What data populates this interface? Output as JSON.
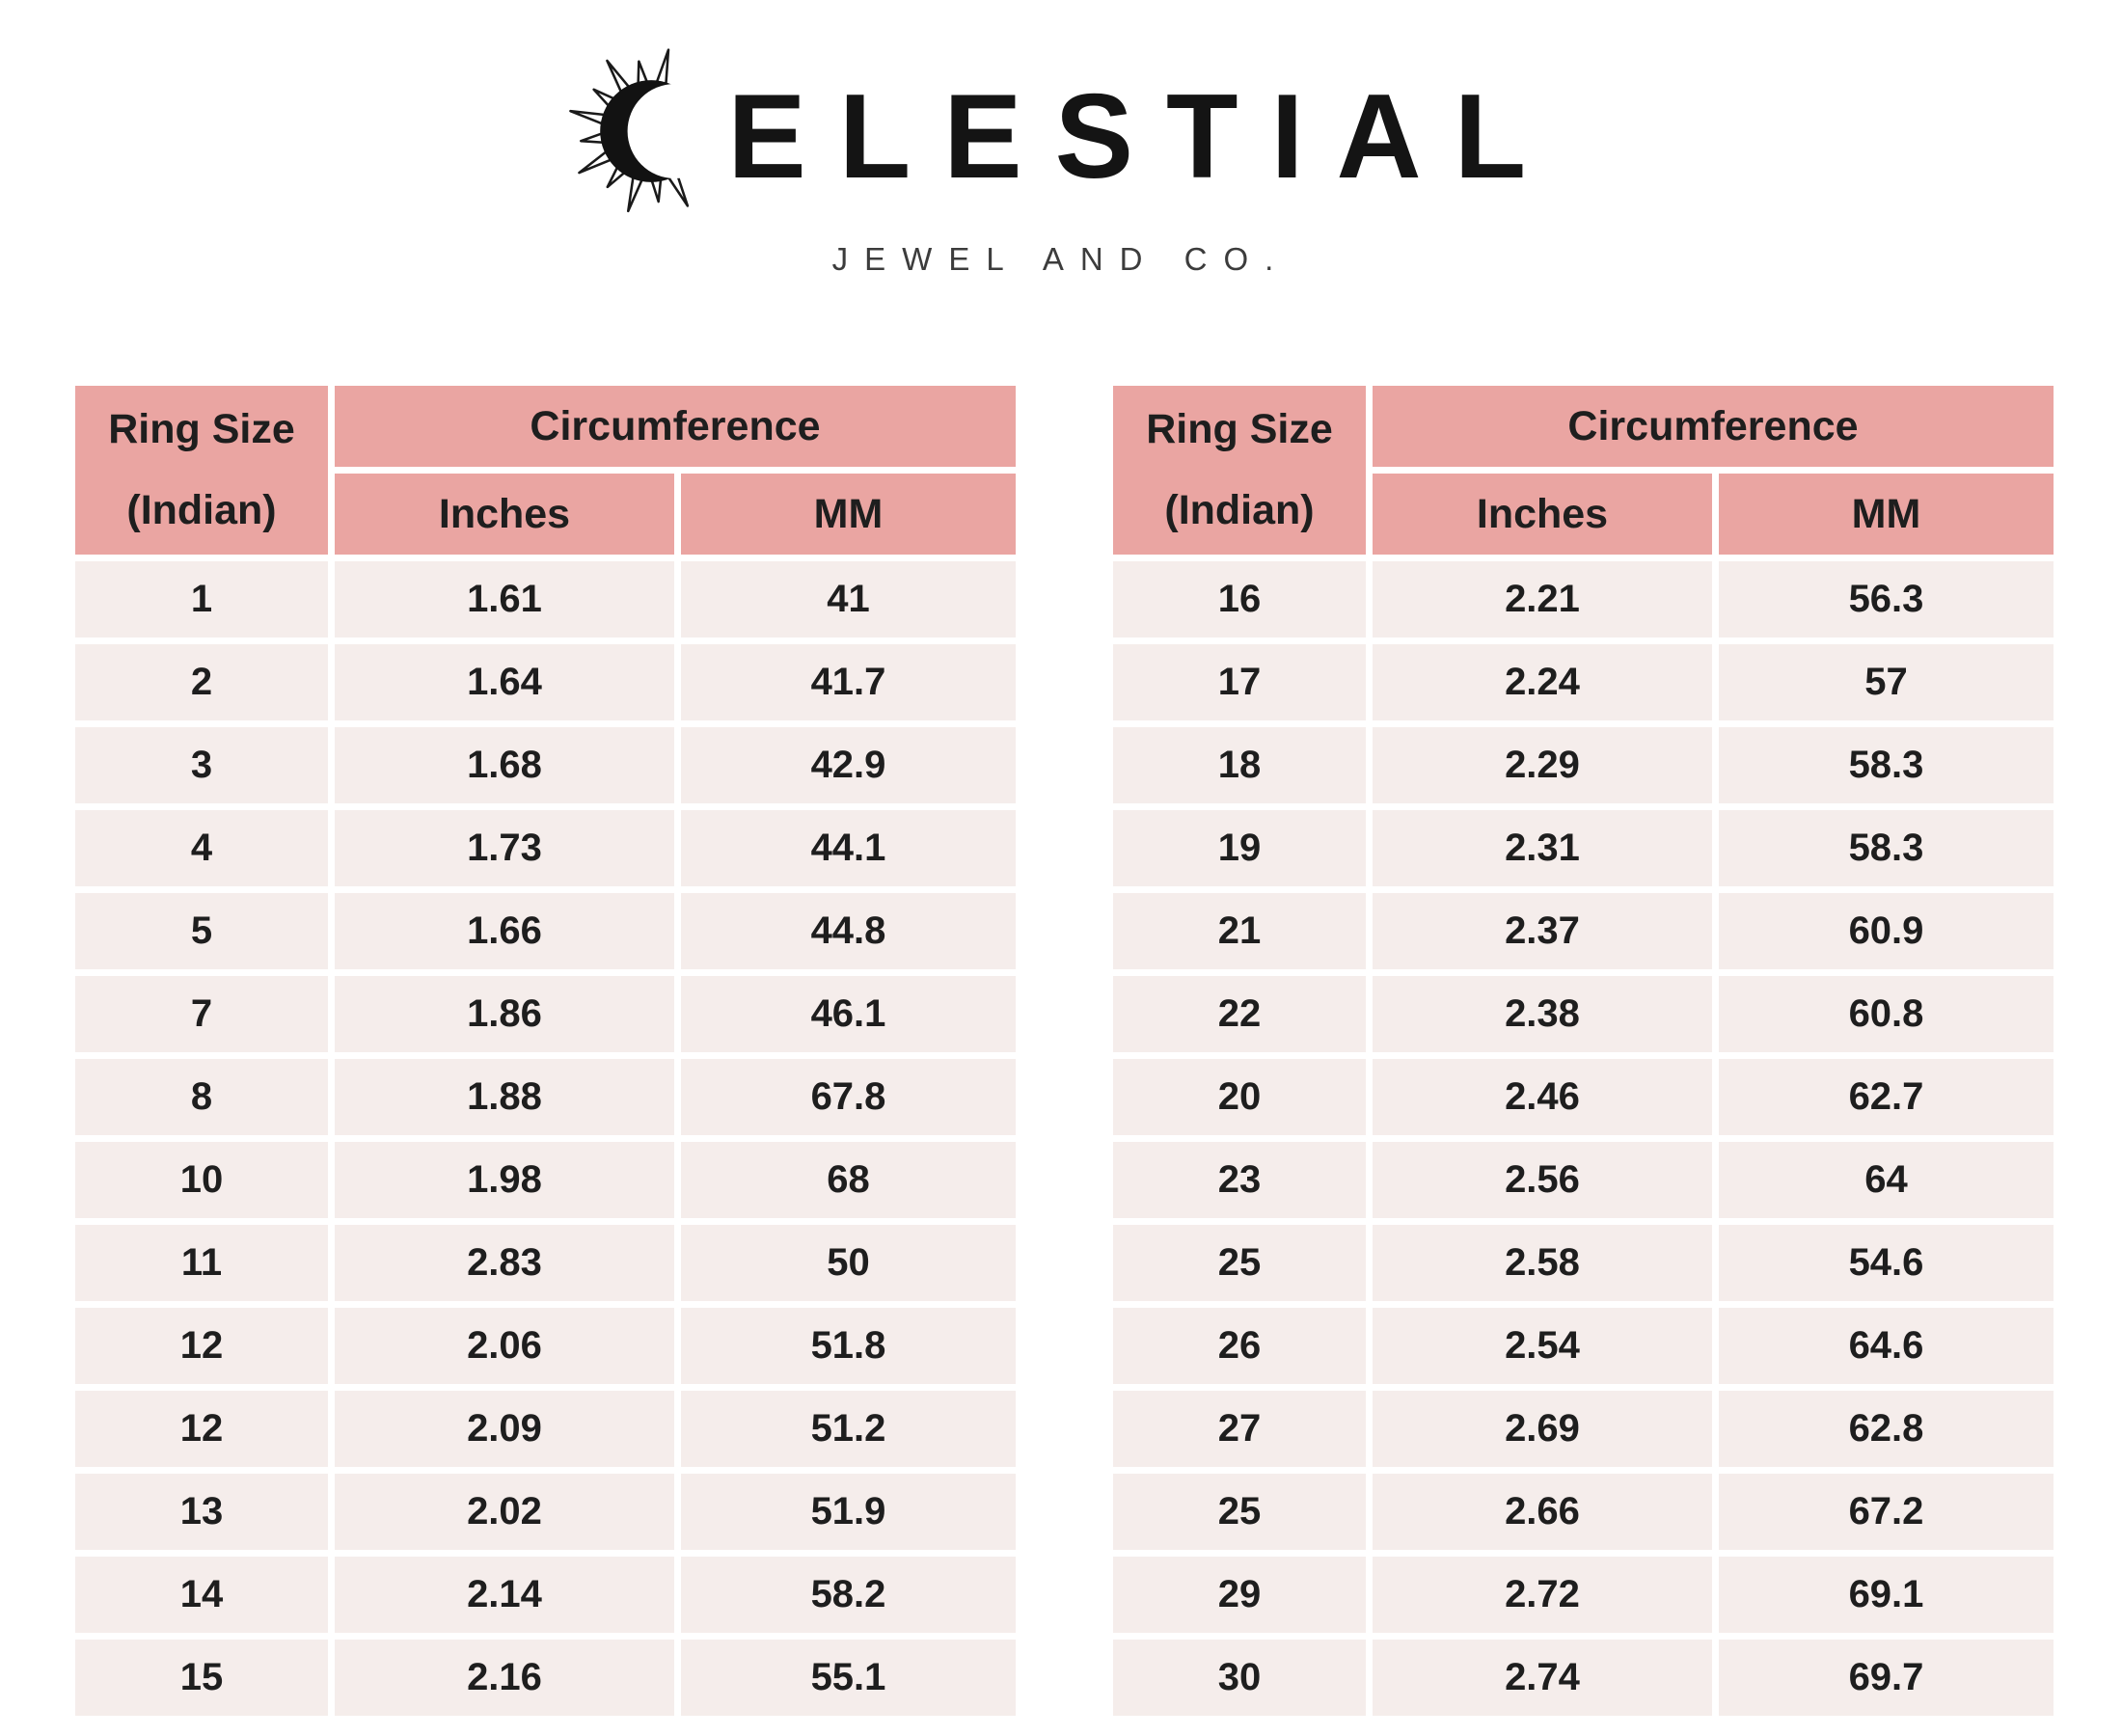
{
  "logo": {
    "brand": "CELESTIAL",
    "wordmark_rest": "ELESTIAL",
    "tagline": "JEWEL AND CO.",
    "icon": "sun-crescent-icon"
  },
  "colors": {
    "header_bg": "#eaa5a2",
    "row_bg": "#f5edeb",
    "text": "#1b1b1b",
    "page_bg": "#ffffff"
  },
  "tables": [
    {
      "headers": {
        "ring_size_line1": "Ring Size",
        "ring_size_line2": "(Indian)",
        "circumference": "Circumference",
        "inches": "Inches",
        "mm": "MM"
      },
      "rows": [
        [
          "1",
          "1.61",
          "41"
        ],
        [
          "2",
          "1.64",
          "41.7"
        ],
        [
          "3",
          "1.68",
          "42.9"
        ],
        [
          "4",
          "1.73",
          "44.1"
        ],
        [
          "5",
          "1.66",
          "44.8"
        ],
        [
          "7",
          "1.86",
          "46.1"
        ],
        [
          "8",
          "1.88",
          "67.8"
        ],
        [
          "10",
          "1.98",
          "68"
        ],
        [
          "11",
          "2.83",
          "50"
        ],
        [
          "12",
          "2.06",
          "51.8"
        ],
        [
          "12",
          "2.09",
          "51.2"
        ],
        [
          "13",
          "2.02",
          "51.9"
        ],
        [
          "14",
          "2.14",
          "58.2"
        ],
        [
          "15",
          "2.16",
          "55.1"
        ]
      ]
    },
    {
      "headers": {
        "ring_size_line1": "Ring Size",
        "ring_size_line2": "(Indian)",
        "circumference": "Circumference",
        "inches": "Inches",
        "mm": "MM"
      },
      "rows": [
        [
          "16",
          "2.21",
          "56.3"
        ],
        [
          "17",
          "2.24",
          "57"
        ],
        [
          "18",
          "2.29",
          "58.3"
        ],
        [
          "19",
          "2.31",
          "58.3"
        ],
        [
          "21",
          "2.37",
          "60.9"
        ],
        [
          "22",
          "2.38",
          "60.8"
        ],
        [
          "20",
          "2.46",
          "62.7"
        ],
        [
          "23",
          "2.56",
          "64"
        ],
        [
          "25",
          "2.58",
          "54.6"
        ],
        [
          "26",
          "2.54",
          "64.6"
        ],
        [
          "27",
          "2.69",
          "62.8"
        ],
        [
          "25",
          "2.66",
          "67.2"
        ],
        [
          "29",
          "2.72",
          "69.1"
        ],
        [
          "30",
          "2.74",
          "69.7"
        ]
      ]
    }
  ]
}
